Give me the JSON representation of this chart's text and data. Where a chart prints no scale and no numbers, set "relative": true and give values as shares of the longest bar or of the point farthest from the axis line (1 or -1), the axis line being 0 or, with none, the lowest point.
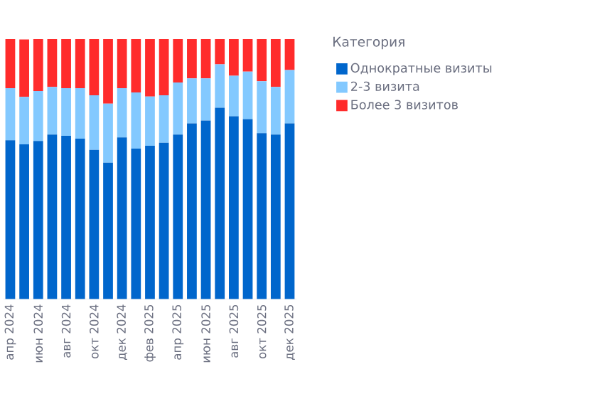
{
  "chart_data": {
    "type": "bar",
    "stacked": true,
    "relative": true,
    "legend": "top right",
    "legend_title": "Категория",
    "categories": [
      "апр 2024",
      null,
      "июн 2024",
      null,
      "авг 2024",
      null,
      "окт 2024",
      null,
      "дек 2024",
      null,
      "фев 2025",
      null,
      "апр 2025",
      null,
      "июн 2025",
      null,
      "авг 2025",
      null,
      "окт 2025",
      null,
      "дек 2025"
    ],
    "series": [
      {
        "name": "Однократные визиты",
        "color": "#0066cc",
        "values": [
          0.611,
          0.595,
          0.608,
          0.633,
          0.628,
          0.617,
          0.574,
          0.525,
          0.622,
          0.579,
          0.59,
          0.601,
          0.633,
          0.676,
          0.687,
          0.736,
          0.703,
          0.692,
          0.638,
          0.633,
          0.676
        ]
      },
      {
        "name": "2-3 визита",
        "color": "#83c9ff",
        "values": [
          0.2,
          0.183,
          0.192,
          0.183,
          0.183,
          0.194,
          0.21,
          0.227,
          0.189,
          0.216,
          0.189,
          0.183,
          0.2,
          0.173,
          0.162,
          0.167,
          0.156,
          0.183,
          0.2,
          0.183,
          0.205
        ]
      },
      {
        "name": "Более 3 визитов",
        "color": "#ff2b2b",
        "values": [
          0.189,
          0.221,
          0.2,
          0.184,
          0.189,
          0.189,
          0.216,
          0.248,
          0.189,
          0.205,
          0.221,
          0.216,
          0.167,
          0.151,
          0.151,
          0.097,
          0.141,
          0.125,
          0.162,
          0.184,
          0.119
        ]
      }
    ]
  }
}
